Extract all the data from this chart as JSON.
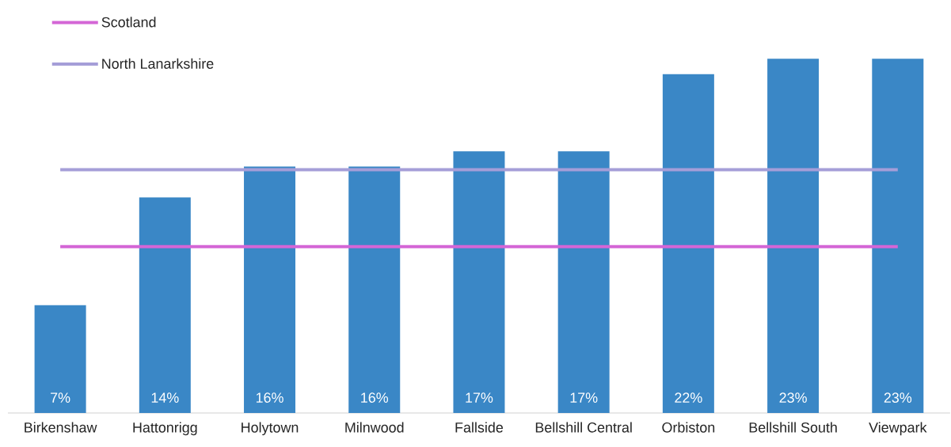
{
  "chart_data": {
    "type": "bar",
    "categories": [
      "Birkenshaw",
      "Hattonrigg",
      "Holytown",
      "Milnwood",
      "Fallside",
      "Bellshill Central",
      "Orbiston",
      "Bellshill South",
      "Viewpark"
    ],
    "series": [
      {
        "color": "#3a87c6",
        "values": [
          7,
          14,
          16,
          16,
          17,
          17,
          22,
          23,
          23
        ],
        "value_labels": [
          "7%",
          "14%",
          "16%",
          "16%",
          "17%",
          "17%",
          "22%",
          "23%",
          "23%"
        ]
      },
      {
        "name": "Scotland",
        "type": "line",
        "color": "#d466d6",
        "values": [
          10.8,
          10.8,
          10.8,
          10.8,
          10.8,
          10.8,
          10.8,
          10.8,
          10.8
        ]
      },
      {
        "name": "North Lanarkshire",
        "type": "line",
        "color": "#a59ed8",
        "values": [
          15.8,
          15.8,
          15.8,
          15.8,
          15.8,
          15.8,
          15.8,
          15.8,
          15.8
        ]
      }
    ],
    "legend": "top left",
    "marker": "none",
    "line_style": "solid"
  }
}
